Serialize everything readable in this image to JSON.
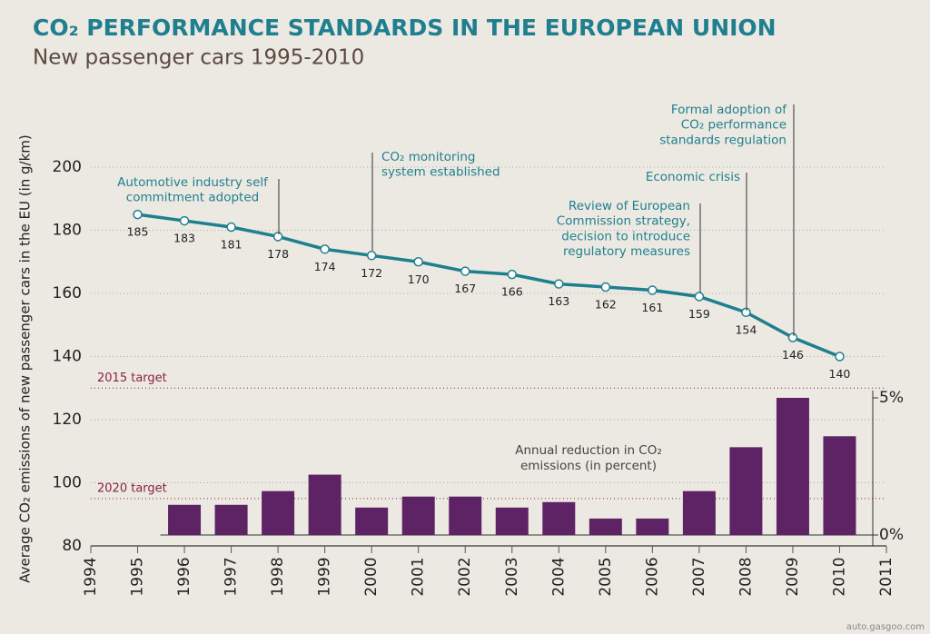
{
  "chart_data": {
    "type": "line_bar",
    "title": "CO₂ PERFORMANCE STANDARDS IN THE EUROPEAN UNION",
    "subtitle": "New passenger cars 1995-2010",
    "ylabel": "Average CO₂ emissions of new passenger cars in the EU (in g/km)",
    "x": [
      1995,
      1996,
      1997,
      1998,
      1999,
      2000,
      2001,
      2002,
      2003,
      2004,
      2005,
      2006,
      2007,
      2008,
      2009,
      2010
    ],
    "xlim": [
      1994,
      2011
    ],
    "xticks": [
      1994,
      1995,
      1996,
      1997,
      1998,
      1999,
      2000,
      2001,
      2002,
      2003,
      2004,
      2005,
      2006,
      2007,
      2008,
      2009,
      2010,
      2011
    ],
    "ylim": [
      80,
      200
    ],
    "yticks": [
      80,
      100,
      120,
      140,
      160,
      180,
      200
    ],
    "y2lim": [
      0,
      5
    ],
    "y2ticks": [
      {
        "value": 0,
        "label": "0%"
      },
      {
        "value": 5,
        "label": "5%"
      }
    ],
    "grid": true,
    "series": [
      {
        "type": "line",
        "color": "#1f7f8f",
        "values": [
          185,
          183,
          181,
          178,
          174,
          172,
          170,
          167,
          166,
          163,
          162,
          161,
          159,
          154,
          146,
          140
        ]
      },
      {
        "type": "bar",
        "axis": "y2",
        "color": "#5e2364",
        "name": "Annual reduction in CO₂ emissions (in percent)",
        "values": [
          null,
          1.1,
          1.1,
          1.6,
          2.2,
          1.0,
          1.4,
          1.4,
          1.0,
          1.2,
          0.6,
          0.6,
          1.6,
          3.2,
          5.0,
          3.6
        ]
      }
    ],
    "reference_lines": [
      {
        "label": "2015 target",
        "value": 130,
        "color": "#8a2240"
      },
      {
        "label": "2020 target",
        "value": 95,
        "color": "#8a2240"
      }
    ],
    "annotations": [
      {
        "x": 1998,
        "lines": [
          "Automotive industry self",
          "commitment adopted"
        ]
      },
      {
        "x": 2000,
        "lines": [
          "CO₂ monitoring",
          "system established"
        ]
      },
      {
        "x": 2007,
        "lines": [
          "Review of European",
          "Commission strategy,",
          "decision to introduce",
          "regulatory measures"
        ]
      },
      {
        "x": 2008,
        "lines": [
          "Economic crisis"
        ]
      },
      {
        "x": 2009,
        "lines": [
          "Formal adoption of",
          "CO₂ performance",
          "standards regulation"
        ]
      }
    ],
    "source": "auto.gasgoo.com"
  }
}
